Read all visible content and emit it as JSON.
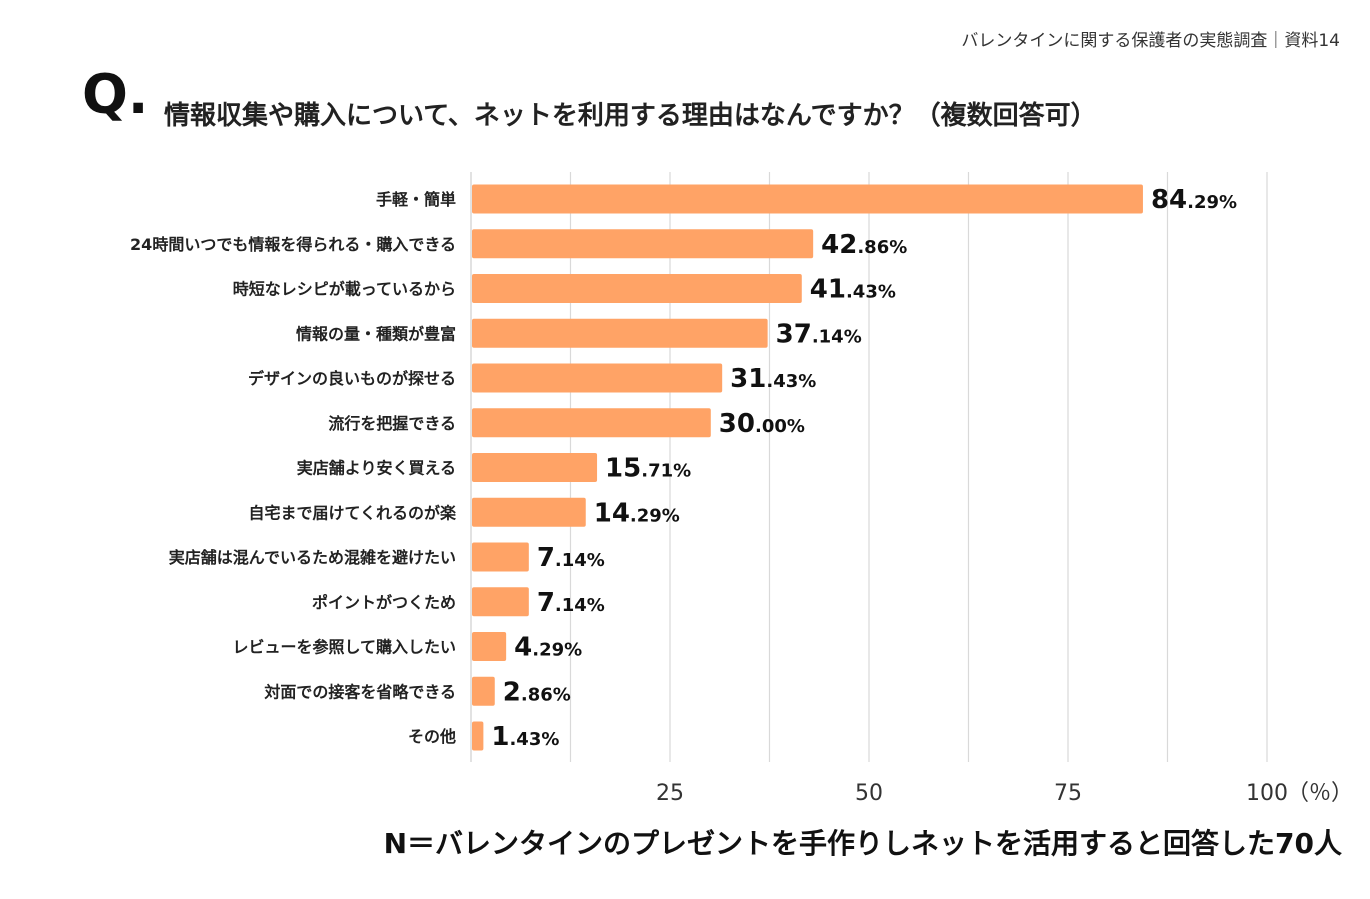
{
  "header": {
    "source": "バレンタインに関する保護者の実態調査｜資料14",
    "q_mark": "Q.",
    "question": "情報収集や購入について、ネットを利用する理由はなんですか？（複数回答可）"
  },
  "footer": {
    "note": "N＝バレンタインのプレゼントを手作りしネットを活用すると回答した70人"
  },
  "chart_data": {
    "type": "bar",
    "orientation": "horizontal",
    "title": "情報収集や購入について、ネットを利用する理由はなんですか？（複数回答可）",
    "categories": [
      "手軽・簡単",
      "24時間いつでも情報を得られる・購入できる",
      "時短なレシピが載っているから",
      "情報の量・種類が豊富",
      "デザインの良いものが探せる",
      "流行を把握できる",
      "実店舗より安く買える",
      "自宅まで届けてくれるのが楽",
      "実店舗は混んでいるため混雑を避けたい",
      "ポイントがつくため",
      "レビューを参照して購入したい",
      "対面での接客を省略できる",
      "その他"
    ],
    "values": [
      84.29,
      42.86,
      41.43,
      37.14,
      31.43,
      30.0,
      15.71,
      14.29,
      7.14,
      7.14,
      4.29,
      2.86,
      1.43
    ],
    "value_labels": [
      {
        "int": "84",
        "dec": ".29%"
      },
      {
        "int": "42",
        "dec": ".86%"
      },
      {
        "int": "41",
        "dec": ".43%"
      },
      {
        "int": "37",
        "dec": ".14%"
      },
      {
        "int": "31",
        "dec": ".43%"
      },
      {
        "int": "30",
        "dec": ".00%"
      },
      {
        "int": "15",
        "dec": ".71%"
      },
      {
        "int": "14",
        "dec": ".29%"
      },
      {
        "int": "7",
        "dec": ".14%"
      },
      {
        "int": "7",
        "dec": ".14%"
      },
      {
        "int": "4",
        "dec": ".29%"
      },
      {
        "int": "2",
        "dec": ".86%"
      },
      {
        "int": "1",
        "dec": ".43%"
      }
    ],
    "xlim": [
      0,
      100
    ],
    "xticks": [
      25,
      50,
      75,
      100
    ],
    "xtick_labels": [
      "25",
      "50",
      "75",
      "100"
    ],
    "xunit": "（％）",
    "grid": true,
    "bar_color": "#FFA366",
    "grid_color": "#d9d9d9"
  }
}
